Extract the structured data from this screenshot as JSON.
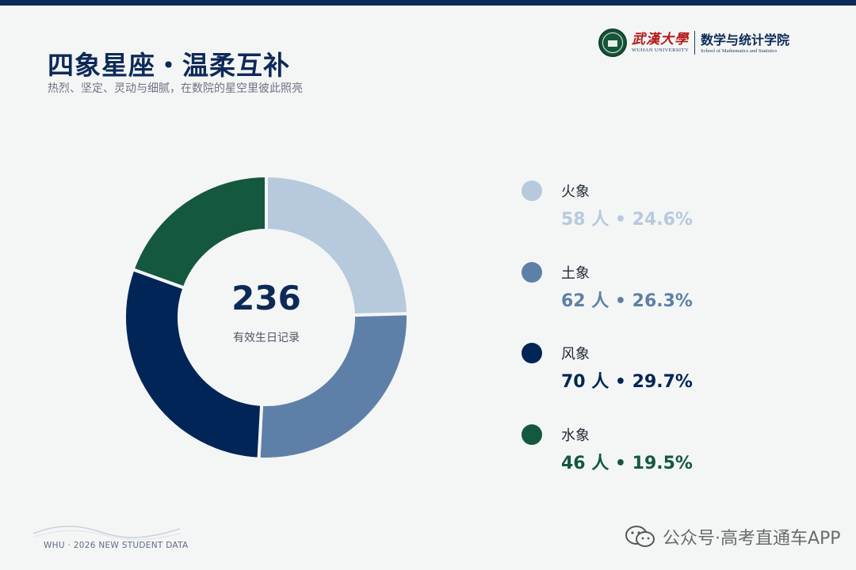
{
  "header": {
    "title": "四象星座・温柔互补",
    "subtitle": "热烈、坚定、灵动与细腻，在数院的星空里彼此照亮"
  },
  "logo": {
    "university_cn": "武漢大學",
    "university_en": "WUHAN UNIVERSITY",
    "school_cn": "数学与统计学院",
    "school_en": "School of Mathematics and Statistics"
  },
  "colors": {
    "navy": "#0d2a57",
    "fire": "#b7c9dc",
    "earth": "#5e80a8",
    "air": "#002556",
    "water": "#14583e"
  },
  "chart_data": {
    "type": "pie",
    "variant": "donut",
    "total": 236,
    "total_label": "有效生日记录",
    "slices": [
      {
        "name": "火象",
        "count": 58,
        "percent": 24.6,
        "display": "58 人 • 24.6%",
        "color": "#b7c9dc"
      },
      {
        "name": "土象",
        "count": 62,
        "percent": 26.3,
        "display": "62 人 • 26.3%",
        "color": "#5e80a8"
      },
      {
        "name": "风象",
        "count": 70,
        "percent": 29.7,
        "display": "70 人 • 29.7%",
        "color": "#002556"
      },
      {
        "name": "水象",
        "count": 46,
        "percent": 19.5,
        "display": "46 人 • 19.5%",
        "color": "#14583e"
      }
    ],
    "legend_position": "right"
  },
  "footer": {
    "text": "WHU · 2026 NEW STUDENT DATA"
  },
  "watermark": {
    "icon": "wechat-icon",
    "text": "公众号·高考直通车APP"
  }
}
